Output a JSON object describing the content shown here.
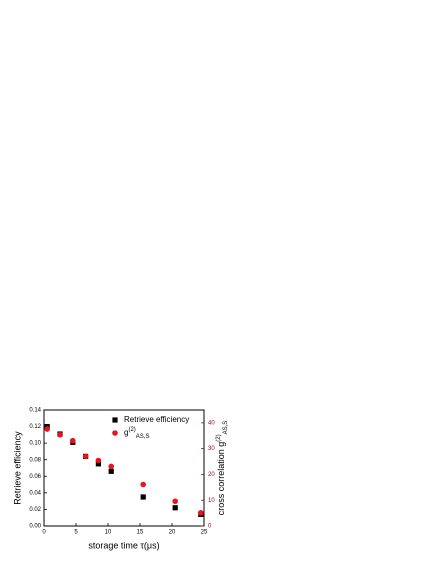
{
  "chart_data": {
    "type": "scatter",
    "xlabel": "storage time τ(μs)",
    "ylabel": "Retrieve efficiency",
    "y2label": "cross correlation g",
    "y2label_sup": "(2)",
    "y2label_sub": "AS,S",
    "x": [
      0.5,
      2.5,
      4.5,
      6.5,
      8.5,
      10.5,
      15.5,
      20.5,
      24.5
    ],
    "series": [
      {
        "name": "Retrieve efficiency",
        "color": "#000000",
        "marker": "square",
        "values": [
          0.12,
          0.111,
          0.101,
          0.084,
          0.075,
          0.066,
          0.035,
          0.022,
          0.014
        ]
      },
      {
        "name": "g",
        "name_sup": "(2)",
        "name_sub": "AS,S",
        "color": "#e8141b",
        "marker": "circle",
        "axis": "y2",
        "values": [
          37.6,
          35.4,
          33.1,
          27,
          25.4,
          23.1,
          16.1,
          9.6,
          5.1
        ]
      }
    ],
    "xlim": [
      0,
      25
    ],
    "xticks": [
      0,
      5,
      10,
      15,
      20,
      25
    ],
    "ylim": [
      0,
      0.14
    ],
    "yticks": [
      {
        "value": 0,
        "label": "0.00"
      },
      {
        "value": 0.02,
        "label": "0.02"
      },
      {
        "value": 0.04,
        "label": "0.04"
      },
      {
        "value": 0.06,
        "label": "0.06"
      },
      {
        "value": 0.08,
        "label": "0.08"
      },
      {
        "value": 0.1,
        "label": "0.10"
      },
      {
        "value": 0.12,
        "label": "0.12"
      },
      {
        "value": 0.14,
        "label": "0.14"
      }
    ],
    "y2lim": [
      0,
      45
    ],
    "y2ticks": [
      0,
      10,
      20,
      30,
      40
    ],
    "y2color": "#8b0a1a"
  }
}
